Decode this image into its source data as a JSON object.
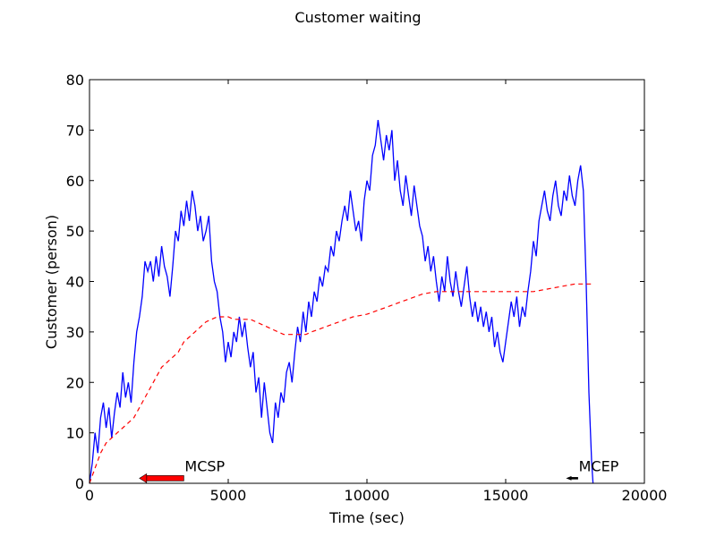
{
  "chart_data": {
    "type": "line",
    "title": "Customer waiting",
    "xlabel": "Time (sec)",
    "ylabel": "Customer (person)",
    "xlim": [
      0,
      20000
    ],
    "ylim": [
      0,
      80
    ],
    "xticks": [
      0,
      5000,
      10000,
      15000,
      20000
    ],
    "yticks": [
      0,
      10,
      20,
      30,
      40,
      50,
      60,
      70,
      80
    ],
    "grid": false,
    "legend": "none",
    "series": [
      {
        "color": "#0000ff",
        "style": "solid",
        "points": [
          [
            0,
            0
          ],
          [
            100,
            4
          ],
          [
            200,
            10
          ],
          [
            300,
            6
          ],
          [
            400,
            13
          ],
          [
            500,
            16
          ],
          [
            600,
            11
          ],
          [
            700,
            15
          ],
          [
            800,
            9
          ],
          [
            900,
            14
          ],
          [
            1000,
            18
          ],
          [
            1100,
            15
          ],
          [
            1200,
            22
          ],
          [
            1300,
            17
          ],
          [
            1400,
            20
          ],
          [
            1500,
            16
          ],
          [
            1600,
            24
          ],
          [
            1700,
            30
          ],
          [
            1800,
            33
          ],
          [
            1900,
            37
          ],
          [
            2000,
            44
          ],
          [
            2100,
            42
          ],
          [
            2200,
            44
          ],
          [
            2300,
            40
          ],
          [
            2400,
            45
          ],
          [
            2500,
            41
          ],
          [
            2600,
            47
          ],
          [
            2700,
            43
          ],
          [
            2800,
            41
          ],
          [
            2900,
            37
          ],
          [
            3000,
            43
          ],
          [
            3100,
            50
          ],
          [
            3200,
            48
          ],
          [
            3300,
            54
          ],
          [
            3400,
            51
          ],
          [
            3500,
            56
          ],
          [
            3600,
            52
          ],
          [
            3700,
            58
          ],
          [
            3800,
            55
          ],
          [
            3900,
            50
          ],
          [
            4000,
            53
          ],
          [
            4100,
            48
          ],
          [
            4200,
            50
          ],
          [
            4300,
            53
          ],
          [
            4400,
            44
          ],
          [
            4500,
            40
          ],
          [
            4600,
            38
          ],
          [
            4700,
            33
          ],
          [
            4800,
            30
          ],
          [
            4900,
            24
          ],
          [
            5000,
            28
          ],
          [
            5100,
            25
          ],
          [
            5200,
            30
          ],
          [
            5300,
            28
          ],
          [
            5400,
            33
          ],
          [
            5500,
            29
          ],
          [
            5600,
            32
          ],
          [
            5700,
            27
          ],
          [
            5800,
            23
          ],
          [
            5900,
            26
          ],
          [
            6000,
            18
          ],
          [
            6100,
            21
          ],
          [
            6200,
            13
          ],
          [
            6300,
            20
          ],
          [
            6400,
            15
          ],
          [
            6500,
            10
          ],
          [
            6600,
            8
          ],
          [
            6700,
            16
          ],
          [
            6800,
            13
          ],
          [
            6900,
            18
          ],
          [
            7000,
            16
          ],
          [
            7100,
            22
          ],
          [
            7200,
            24
          ],
          [
            7300,
            20
          ],
          [
            7400,
            26
          ],
          [
            7500,
            31
          ],
          [
            7600,
            28
          ],
          [
            7700,
            34
          ],
          [
            7800,
            30
          ],
          [
            7900,
            36
          ],
          [
            8000,
            33
          ],
          [
            8100,
            38
          ],
          [
            8200,
            36
          ],
          [
            8300,
            41
          ],
          [
            8400,
            39
          ],
          [
            8500,
            43
          ],
          [
            8600,
            42
          ],
          [
            8700,
            47
          ],
          [
            8800,
            45
          ],
          [
            8900,
            50
          ],
          [
            9000,
            48
          ],
          [
            9100,
            52
          ],
          [
            9200,
            55
          ],
          [
            9300,
            52
          ],
          [
            9400,
            58
          ],
          [
            9500,
            54
          ],
          [
            9600,
            50
          ],
          [
            9700,
            52
          ],
          [
            9800,
            48
          ],
          [
            9900,
            56
          ],
          [
            10000,
            60
          ],
          [
            10100,
            58
          ],
          [
            10200,
            65
          ],
          [
            10300,
            67
          ],
          [
            10400,
            72
          ],
          [
            10500,
            68
          ],
          [
            10600,
            64
          ],
          [
            10700,
            69
          ],
          [
            10800,
            66
          ],
          [
            10900,
            70
          ],
          [
            11000,
            60
          ],
          [
            11100,
            64
          ],
          [
            11200,
            58
          ],
          [
            11300,
            55
          ],
          [
            11400,
            61
          ],
          [
            11500,
            57
          ],
          [
            11600,
            53
          ],
          [
            11700,
            59
          ],
          [
            11800,
            55
          ],
          [
            11900,
            51
          ],
          [
            12000,
            49
          ],
          [
            12100,
            44
          ],
          [
            12200,
            47
          ],
          [
            12300,
            42
          ],
          [
            12400,
            45
          ],
          [
            12500,
            40
          ],
          [
            12600,
            36
          ],
          [
            12700,
            41
          ],
          [
            12800,
            38
          ],
          [
            12900,
            45
          ],
          [
            13000,
            40
          ],
          [
            13100,
            37
          ],
          [
            13200,
            42
          ],
          [
            13300,
            38
          ],
          [
            13400,
            35
          ],
          [
            13500,
            39
          ],
          [
            13600,
            43
          ],
          [
            13700,
            37
          ],
          [
            13800,
            33
          ],
          [
            13900,
            36
          ],
          [
            14000,
            32
          ],
          [
            14100,
            35
          ],
          [
            14200,
            31
          ],
          [
            14300,
            34
          ],
          [
            14400,
            30
          ],
          [
            14500,
            33
          ],
          [
            14600,
            27
          ],
          [
            14700,
            30
          ],
          [
            14800,
            26
          ],
          [
            14900,
            24
          ],
          [
            15000,
            28
          ],
          [
            15100,
            32
          ],
          [
            15200,
            36
          ],
          [
            15300,
            33
          ],
          [
            15400,
            37
          ],
          [
            15500,
            31
          ],
          [
            15600,
            35
          ],
          [
            15700,
            33
          ],
          [
            15800,
            38
          ],
          [
            15900,
            42
          ],
          [
            16000,
            48
          ],
          [
            16100,
            45
          ],
          [
            16200,
            52
          ],
          [
            16300,
            55
          ],
          [
            16400,
            58
          ],
          [
            16500,
            54
          ],
          [
            16600,
            52
          ],
          [
            16700,
            57
          ],
          [
            16800,
            60
          ],
          [
            16900,
            55
          ],
          [
            17000,
            53
          ],
          [
            17100,
            58
          ],
          [
            17200,
            56
          ],
          [
            17300,
            61
          ],
          [
            17400,
            57
          ],
          [
            17500,
            55
          ],
          [
            17600,
            60
          ],
          [
            17700,
            63
          ],
          [
            17800,
            58
          ],
          [
            17900,
            40
          ],
          [
            18000,
            18
          ],
          [
            18100,
            4
          ],
          [
            18150,
            0
          ]
        ]
      },
      {
        "color": "#ff0000",
        "style": "dashed",
        "points": [
          [
            0,
            0
          ],
          [
            200,
            3
          ],
          [
            400,
            6
          ],
          [
            600,
            8
          ],
          [
            800,
            9
          ],
          [
            1000,
            10
          ],
          [
            1200,
            11
          ],
          [
            1400,
            12
          ],
          [
            1600,
            13
          ],
          [
            1800,
            15
          ],
          [
            2000,
            17
          ],
          [
            2200,
            19
          ],
          [
            2400,
            21
          ],
          [
            2600,
            23
          ],
          [
            2800,
            24
          ],
          [
            3000,
            25
          ],
          [
            3200,
            26
          ],
          [
            3400,
            28
          ],
          [
            3600,
            29
          ],
          [
            3800,
            30
          ],
          [
            4000,
            31
          ],
          [
            4200,
            32
          ],
          [
            4400,
            32.5
          ],
          [
            4600,
            33
          ],
          [
            4800,
            33
          ],
          [
            5000,
            33
          ],
          [
            5200,
            32.5
          ],
          [
            5400,
            32.5
          ],
          [
            5600,
            32.5
          ],
          [
            5800,
            32.5
          ],
          [
            6000,
            32
          ],
          [
            6200,
            31.5
          ],
          [
            6400,
            31
          ],
          [
            6600,
            30.5
          ],
          [
            6800,
            30
          ],
          [
            7000,
            29.5
          ],
          [
            7200,
            29.5
          ],
          [
            7400,
            29.5
          ],
          [
            7600,
            29.5
          ],
          [
            7800,
            29.5
          ],
          [
            8000,
            30
          ],
          [
            8500,
            31
          ],
          [
            9000,
            32
          ],
          [
            9500,
            33
          ],
          [
            10000,
            33.5
          ],
          [
            10500,
            34.5
          ],
          [
            11000,
            35.5
          ],
          [
            11500,
            36.5
          ],
          [
            12000,
            37.5
          ],
          [
            12500,
            38
          ],
          [
            13000,
            38
          ],
          [
            13500,
            38
          ],
          [
            14000,
            38
          ],
          [
            14500,
            38
          ],
          [
            15000,
            38
          ],
          [
            15500,
            38
          ],
          [
            16000,
            38
          ],
          [
            16500,
            38.5
          ],
          [
            17000,
            39
          ],
          [
            17500,
            39.5
          ],
          [
            18000,
            39.5
          ],
          [
            18200,
            39.5
          ]
        ]
      }
    ],
    "annotations": [
      {
        "text": "MCSP",
        "x": 3400,
        "y": 1,
        "arrow_to": [
          1800,
          1
        ],
        "arrow_color": "#ff0000"
      },
      {
        "text": "MCEP",
        "x": 17600,
        "y": 1,
        "arrow_to": [
          17200,
          1
        ],
        "arrow_color": "#000000"
      }
    ]
  }
}
